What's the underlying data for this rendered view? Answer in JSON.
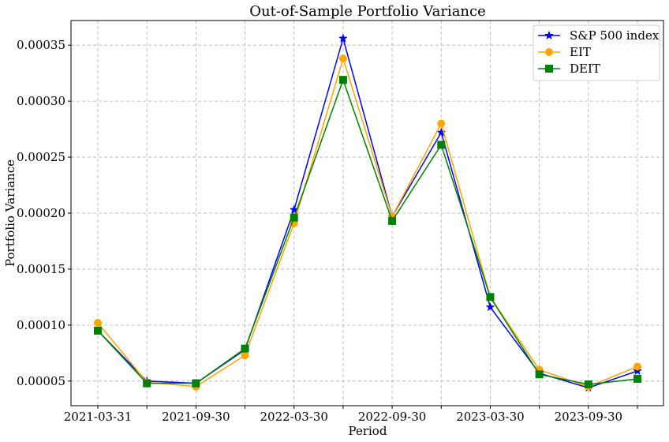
{
  "chart_data": {
    "type": "line",
    "title": "Out-of-Sample Portfolio Variance",
    "xlabel": "Period",
    "ylabel": "Portfolio Variance",
    "x": [
      "2021-03-31",
      "2021-06-30",
      "2021-09-30",
      "2021-12-31",
      "2022-03-30",
      "2022-06-30",
      "2022-09-30",
      "2022-12-31",
      "2023-03-30",
      "2023-06-30",
      "2023-09-30",
      "2023-12-31"
    ],
    "x_tick_labels": [
      "2021-03-31",
      "",
      "2021-09-30",
      "",
      "2022-03-30",
      "",
      "2022-09-30",
      "",
      "2023-03-30",
      "",
      "2023-09-30",
      ""
    ],
    "y_ticks": [
      "0.00005",
      "0.00010",
      "0.00015",
      "0.00020",
      "0.00025",
      "0.00030",
      "0.00035"
    ],
    "ylim": [
      2.8e-05,
      0.000372
    ],
    "grid": true,
    "legend_position": "top-right",
    "series": [
      {
        "name": "S&P 500 index",
        "color": "#0000ff",
        "marker": "star",
        "values": [
          9.5e-05,
          5e-05,
          4.8e-05,
          7.8e-05,
          0.000203,
          0.000356,
          0.000197,
          0.000272,
          0.000116,
          5.7e-05,
          4.4e-05,
          5.9e-05
        ]
      },
      {
        "name": "EIT",
        "color": "#ffa500",
        "marker": "circle",
        "values": [
          0.000102,
          4.9e-05,
          4.5e-05,
          7.3e-05,
          0.000191,
          0.000338,
          0.000197,
          0.00028,
          0.000125,
          6e-05,
          4.5e-05,
          6.3e-05
        ]
      },
      {
        "name": "DEIT",
        "color": "#008000",
        "marker": "square",
        "values": [
          9.5e-05,
          4.8e-05,
          4.8e-05,
          7.9e-05,
          0.000196,
          0.000319,
          0.000193,
          0.000261,
          0.000125,
          5.6e-05,
          4.7e-05,
          5.2e-05
        ]
      }
    ]
  }
}
